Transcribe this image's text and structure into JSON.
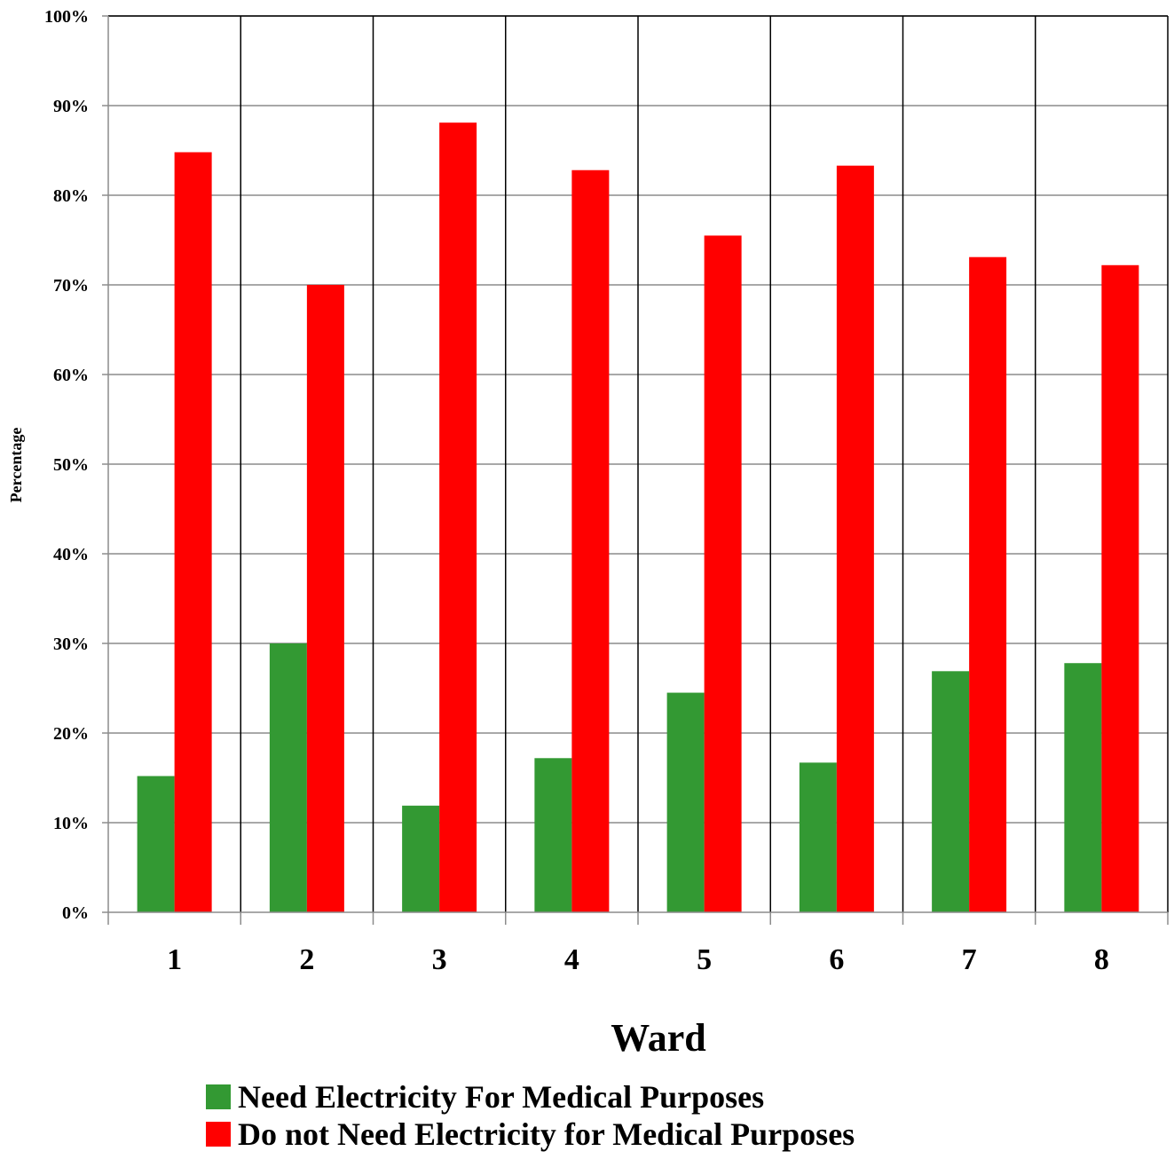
{
  "chart_data": {
    "type": "bar",
    "title": "",
    "xlabel": "Ward",
    "ylabel": "Percentage",
    "ylim": [
      0,
      100
    ],
    "yticks": [
      "0%",
      "10%",
      "20%",
      "30%",
      "40%",
      "50%",
      "60%",
      "70%",
      "80%",
      "90%",
      "100%"
    ],
    "categories": [
      "1",
      "2",
      "3",
      "4",
      "5",
      "6",
      "7",
      "8"
    ],
    "grid": true,
    "legend_position": "bottom",
    "series": [
      {
        "name": "Need Electricity For Medical Purposes",
        "color": "#339933",
        "values": [
          15.2,
          30.0,
          11.9,
          17.2,
          24.5,
          16.7,
          26.9,
          27.8
        ]
      },
      {
        "name": "Do not Need Electricity for Medical Purposes",
        "color": "#ff0000",
        "values": [
          84.8,
          70.0,
          88.1,
          82.8,
          75.5,
          83.3,
          73.1,
          72.2
        ]
      }
    ]
  }
}
